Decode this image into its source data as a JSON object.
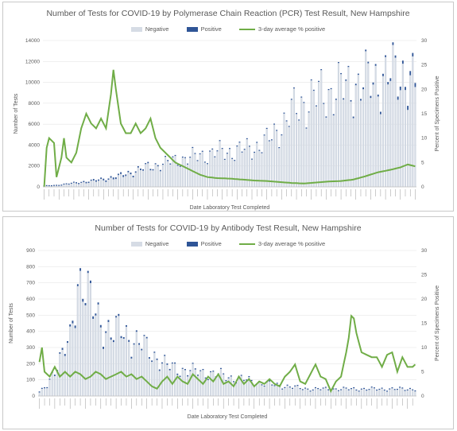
{
  "colors": {
    "negative": "#d6dce5",
    "positive": "#2f5597",
    "average": "#70ad47",
    "grid": "#e6e6e6",
    "text": "#595959"
  },
  "chart_data": [
    {
      "type": "bar",
      "title": "Number of Tests for COVID-19 by Polymerase Chain Reaction (PCR) Test Result, New Hampshire",
      "xlabel": "Date Laboratory Test Completed",
      "ylabel": "Number of Tests",
      "y2label": "Percent of Specimens Positive",
      "ylim": [
        0,
        14000
      ],
      "yticks": [
        0,
        2000,
        4000,
        6000,
        8000,
        10000,
        12000,
        14000
      ],
      "y2lim": [
        0,
        30
      ],
      "y2ticks": [
        0,
        5,
        10,
        15,
        20,
        25,
        30
      ],
      "legend": {
        "placement": "top",
        "entries": [
          "Negative",
          "Positive",
          "3-day average % positive"
        ]
      },
      "stacked": true,
      "negative_anchors": [
        [
          0,
          50
        ],
        [
          5,
          100
        ],
        [
          10,
          250
        ],
        [
          15,
          400
        ],
        [
          20,
          500
        ],
        [
          25,
          700
        ],
        [
          30,
          900
        ],
        [
          35,
          1300
        ],
        [
          40,
          1700
        ],
        [
          45,
          2000
        ],
        [
          50,
          2300
        ],
        [
          55,
          2600
        ],
        [
          60,
          2800
        ],
        [
          65,
          3000
        ],
        [
          70,
          3300
        ],
        [
          75,
          3300
        ],
        [
          80,
          3500
        ],
        [
          85,
          3700
        ],
        [
          90,
          4300
        ],
        [
          95,
          5500
        ],
        [
          100,
          7000
        ],
        [
          105,
          8000
        ],
        [
          110,
          8600
        ],
        [
          115,
          9000
        ],
        [
          120,
          9300
        ],
        [
          125,
          9600
        ],
        [
          130,
          9900
        ],
        [
          135,
          10200
        ],
        [
          140,
          10500
        ],
        [
          145,
          10700
        ],
        [
          150,
          9500
        ]
      ],
      "positive_anchors": [
        [
          0,
          20
        ],
        [
          10,
          80
        ],
        [
          20,
          120
        ],
        [
          30,
          150
        ],
        [
          40,
          120
        ],
        [
          50,
          90
        ],
        [
          60,
          70
        ],
        [
          70,
          60
        ],
        [
          80,
          60
        ],
        [
          90,
          60
        ],
        [
          100,
          70
        ],
        [
          110,
          80
        ],
        [
          120,
          100
        ],
        [
          130,
          150
        ],
        [
          140,
          220
        ],
        [
          150,
          380
        ]
      ],
      "average_anchors": [
        [
          0,
          0
        ],
        [
          1,
          8
        ],
        [
          2,
          10
        ],
        [
          4,
          9
        ],
        [
          5,
          2
        ],
        [
          7,
          6
        ],
        [
          8,
          10
        ],
        [
          9,
          6
        ],
        [
          11,
          5
        ],
        [
          13,
          7
        ],
        [
          15,
          12
        ],
        [
          17,
          15
        ],
        [
          19,
          13
        ],
        [
          21,
          12
        ],
        [
          23,
          14
        ],
        [
          25,
          12
        ],
        [
          27,
          19
        ],
        [
          28,
          24
        ],
        [
          29,
          20
        ],
        [
          31,
          13
        ],
        [
          33,
          11
        ],
        [
          35,
          11
        ],
        [
          37,
          13
        ],
        [
          39,
          11
        ],
        [
          41,
          12
        ],
        [
          43,
          14
        ],
        [
          45,
          10
        ],
        [
          47,
          8
        ],
        [
          49,
          7
        ],
        [
          51,
          6
        ],
        [
          53,
          5
        ],
        [
          55,
          4.5
        ],
        [
          57,
          4
        ],
        [
          59,
          3.5
        ],
        [
          61,
          3
        ],
        [
          63,
          2.5
        ],
        [
          66,
          2
        ],
        [
          70,
          1.8
        ],
        [
          75,
          1.7
        ],
        [
          80,
          1.5
        ],
        [
          85,
          1.3
        ],
        [
          90,
          1.2
        ],
        [
          95,
          1.0
        ],
        [
          100,
          0.8
        ],
        [
          105,
          0.7
        ],
        [
          110,
          0.9
        ],
        [
          115,
          1.1
        ],
        [
          120,
          1.2
        ],
        [
          125,
          1.5
        ],
        [
          130,
          2.2
        ],
        [
          135,
          3
        ],
        [
          140,
          3.5
        ],
        [
          144,
          4
        ],
        [
          147,
          4.6
        ],
        [
          150,
          4.2
        ]
      ],
      "n_points": 151
    },
    {
      "type": "bar",
      "title": "Number of Tests for COVID-19 by Antibody Test Result, New Hampshire",
      "xlabel": "Date Laboratory Test Completed",
      "ylabel": "Number of Tests",
      "y2label": "Percent of Specimens Positive",
      "ylim": [
        0,
        900
      ],
      "yticks": [
        0,
        100,
        200,
        300,
        400,
        500,
        600,
        700,
        800,
        900
      ],
      "y2lim": [
        0,
        30
      ],
      "y2ticks": [
        0,
        5,
        10,
        15,
        20,
        25,
        30
      ],
      "legend": {
        "placement": "top",
        "entries": [
          "Negative",
          "Positive",
          "3-day average % positive"
        ]
      },
      "stacked": true,
      "negative_anchors": [
        [
          0,
          20
        ],
        [
          3,
          60
        ],
        [
          6,
          170
        ],
        [
          9,
          250
        ],
        [
          12,
          330
        ],
        [
          15,
          700
        ],
        [
          17,
          740
        ],
        [
          19,
          620
        ],
        [
          21,
          520
        ],
        [
          23,
          460
        ],
        [
          26,
          420
        ],
        [
          29,
          380
        ],
        [
          32,
          400
        ],
        [
          35,
          360
        ],
        [
          38,
          330
        ],
        [
          41,
          300
        ],
        [
          44,
          260
        ],
        [
          47,
          220
        ],
        [
          50,
          180
        ],
        [
          55,
          160
        ],
        [
          60,
          150
        ],
        [
          65,
          140
        ],
        [
          70,
          130
        ],
        [
          75,
          110
        ],
        [
          80,
          100
        ],
        [
          85,
          80
        ],
        [
          90,
          70
        ],
        [
          95,
          60
        ],
        [
          100,
          50
        ],
        [
          105,
          40
        ],
        [
          110,
          40
        ],
        [
          115,
          40
        ],
        [
          120,
          40
        ],
        [
          125,
          40
        ],
        [
          130,
          40
        ],
        [
          135,
          40
        ]
      ],
      "positive_anchors": [
        [
          0,
          2
        ],
        [
          15,
          15
        ],
        [
          25,
          12
        ],
        [
          40,
          8
        ],
        [
          60,
          6
        ],
        [
          80,
          4
        ],
        [
          100,
          3
        ],
        [
          120,
          3
        ],
        [
          135,
          4
        ]
      ],
      "average_anchors": [
        [
          0,
          7
        ],
        [
          1,
          10
        ],
        [
          2,
          5
        ],
        [
          4,
          4
        ],
        [
          6,
          6
        ],
        [
          8,
          4
        ],
        [
          10,
          5
        ],
        [
          12,
          4
        ],
        [
          14,
          5
        ],
        [
          16,
          4.5
        ],
        [
          18,
          3.5
        ],
        [
          20,
          4
        ],
        [
          22,
          5
        ],
        [
          24,
          4.5
        ],
        [
          26,
          3.5
        ],
        [
          28,
          4
        ],
        [
          30,
          4.5
        ],
        [
          32,
          5
        ],
        [
          34,
          4
        ],
        [
          36,
          4.5
        ],
        [
          38,
          3.5
        ],
        [
          40,
          4
        ],
        [
          42,
          3
        ],
        [
          44,
          2
        ],
        [
          46,
          1.5
        ],
        [
          48,
          3
        ],
        [
          50,
          4
        ],
        [
          52,
          2.5
        ],
        [
          54,
          4
        ],
        [
          56,
          3
        ],
        [
          58,
          2.5
        ],
        [
          60,
          4.5
        ],
        [
          62,
          3.5
        ],
        [
          64,
          2.5
        ],
        [
          66,
          4
        ],
        [
          68,
          3
        ],
        [
          70,
          4.5
        ],
        [
          72,
          2.5
        ],
        [
          74,
          3
        ],
        [
          76,
          2
        ],
        [
          78,
          4
        ],
        [
          80,
          2.5
        ],
        [
          82,
          3.5
        ],
        [
          84,
          2
        ],
        [
          86,
          3
        ],
        [
          88,
          2.5
        ],
        [
          90,
          3.5
        ],
        [
          92,
          2.5
        ],
        [
          94,
          2
        ],
        [
          96,
          4
        ],
        [
          98,
          5
        ],
        [
          100,
          6.5
        ],
        [
          102,
          3
        ],
        [
          104,
          2.5
        ],
        [
          106,
          4.5
        ],
        [
          108,
          6.5
        ],
        [
          110,
          4
        ],
        [
          112,
          3.5
        ],
        [
          114,
          1
        ],
        [
          116,
          3
        ],
        [
          118,
          4
        ],
        [
          120,
          9
        ],
        [
          121,
          12
        ],
        [
          122,
          16.5
        ],
        [
          123,
          16
        ],
        [
          124,
          13
        ],
        [
          126,
          9
        ],
        [
          128,
          8.5
        ],
        [
          130,
          8
        ],
        [
          132,
          8
        ],
        [
          134,
          6
        ],
        [
          136,
          8.5
        ],
        [
          138,
          9
        ],
        [
          140,
          5
        ],
        [
          142,
          8
        ],
        [
          144,
          6
        ],
        [
          146,
          6
        ],
        [
          147,
          6.5
        ]
      ],
      "n_points": 148
    }
  ]
}
